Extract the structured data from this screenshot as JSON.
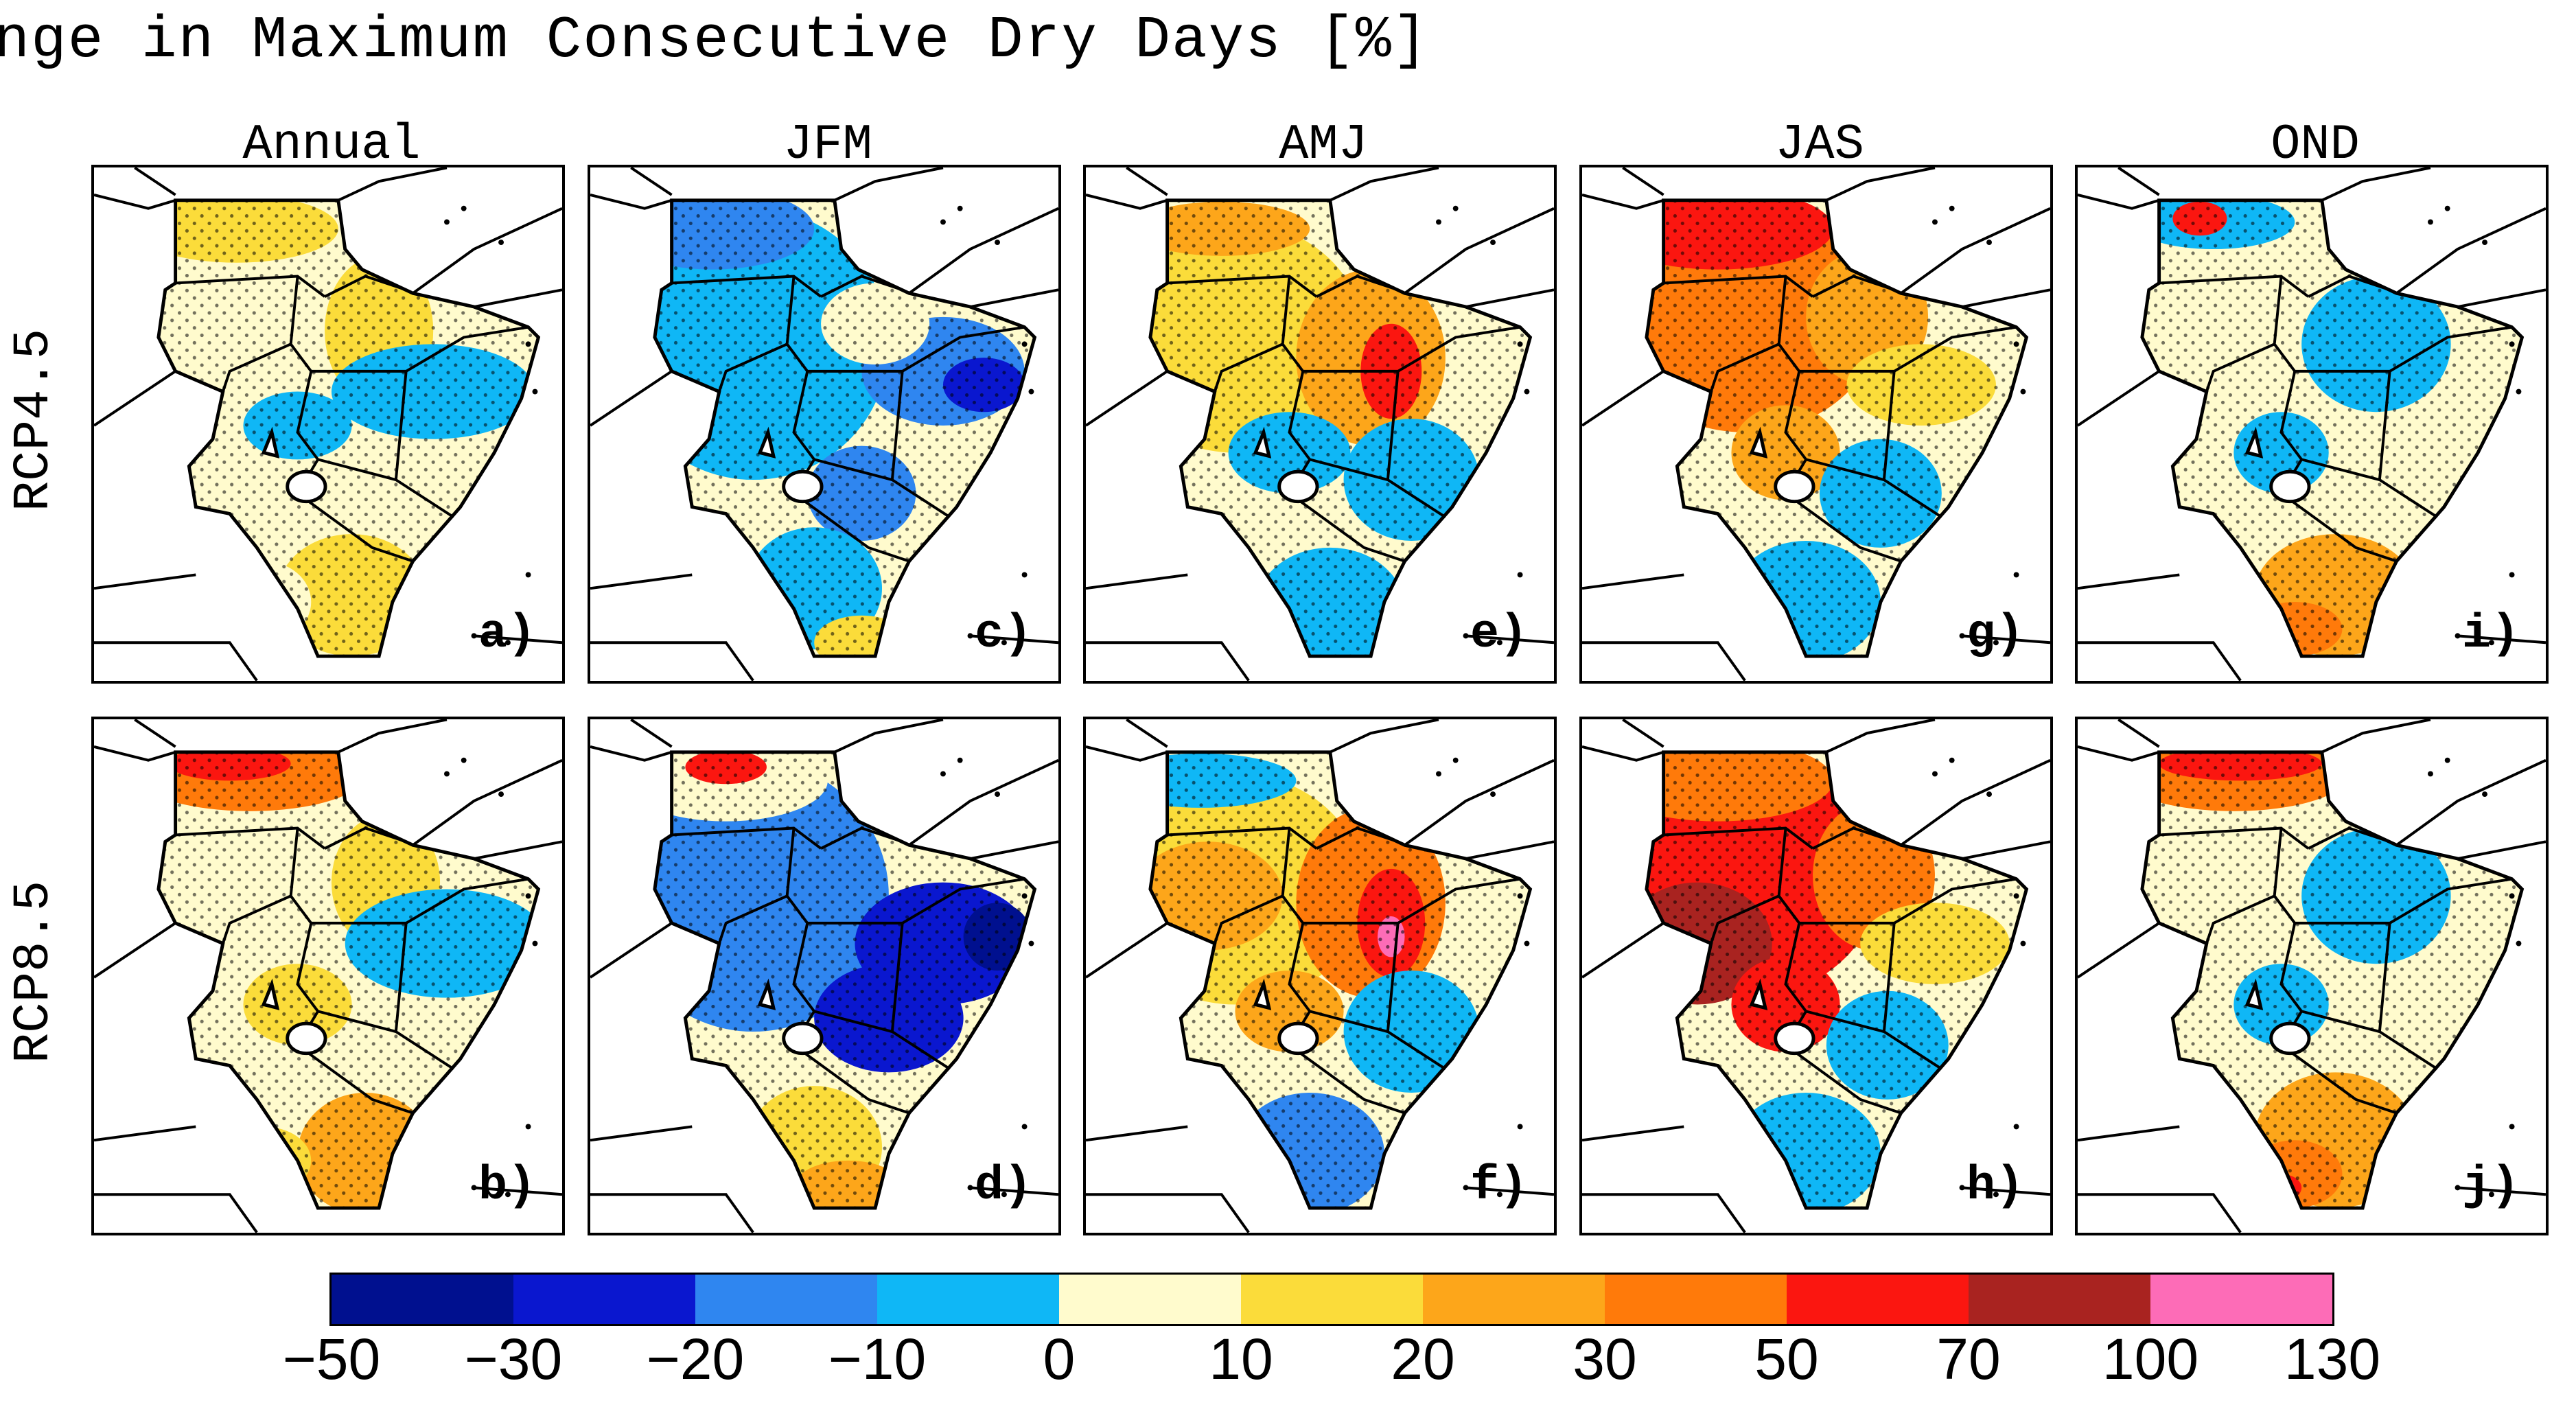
{
  "title": "Change in Maximum Consecutive Dry Days [%]",
  "columns": [
    "Annual",
    "JFM",
    "AMJ",
    "JAS",
    "OND"
  ],
  "rows": [
    "RCP4.5",
    "RCP8.5"
  ],
  "panels": [
    {
      "id": "a)",
      "row": "RCP4.5",
      "col": "Annual",
      "pattern": "mild"
    },
    {
      "id": "c)",
      "row": "RCP4.5",
      "col": "JFM",
      "pattern": "wetting"
    },
    {
      "id": "e)",
      "row": "RCP4.5",
      "col": "AMJ",
      "pattern": "drying-ethiopia"
    },
    {
      "id": "g)",
      "row": "RCP4.5",
      "col": "JAS",
      "pattern": "strong-drying"
    },
    {
      "id": "i)",
      "row": "RCP4.5",
      "col": "OND",
      "pattern": "mild-south"
    },
    {
      "id": "b)",
      "row": "RCP8.5",
      "col": "Annual",
      "pattern": "mild-north"
    },
    {
      "id": "d)",
      "row": "RCP8.5",
      "col": "JFM",
      "pattern": "strong-wetting"
    },
    {
      "id": "f)",
      "row": "RCP8.5",
      "col": "AMJ",
      "pattern": "drying-ethiopia-strong"
    },
    {
      "id": "h)",
      "row": "RCP8.5",
      "col": "JAS",
      "pattern": "very-strong-drying"
    },
    {
      "id": "j)",
      "row": "RCP8.5",
      "col": "OND",
      "pattern": "south-drying"
    }
  ],
  "colorbar": {
    "ticks": [
      "−50",
      "−30",
      "−20",
      "−10",
      "0",
      "10",
      "20",
      "30",
      "50",
      "70",
      "100",
      "130"
    ],
    "colors": [
      "#00108f",
      "#0a17cf",
      "#2f86f0",
      "#0fb7f6",
      "#fffbcd",
      "#fbdc3a",
      "#fda61a",
      "#ff7a0a",
      "#fb1610",
      "#a92320",
      "#fd6cb7"
    ]
  }
}
